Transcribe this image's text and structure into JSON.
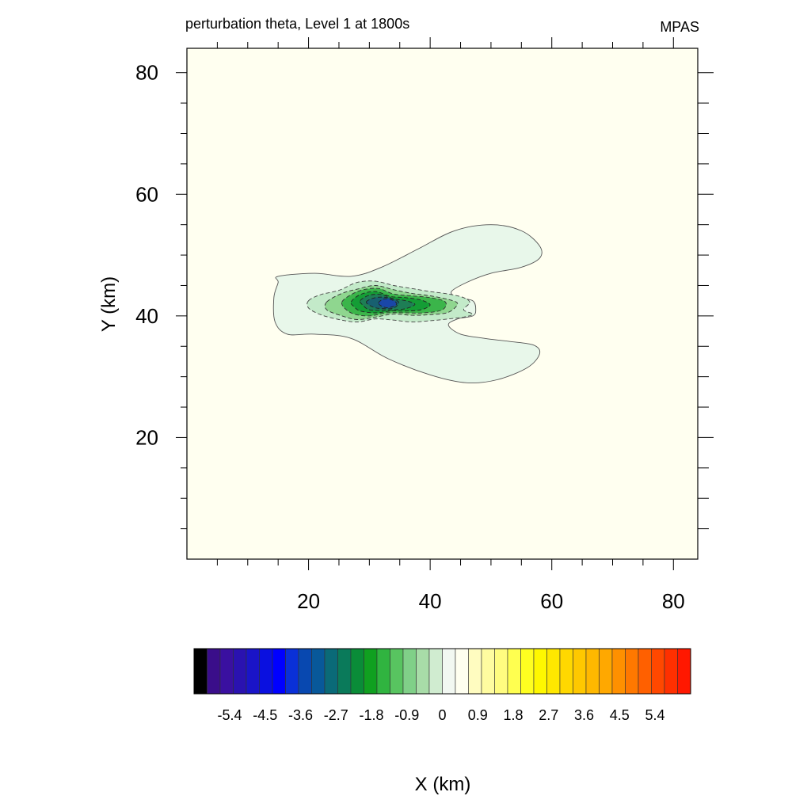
{
  "chart_data": {
    "type": "contour",
    "title": "perturbation theta, Level 1 at 1800s",
    "right_title": "MPAS",
    "xlabel": "X (km)",
    "ylabel": "Y (km)",
    "xlim": [
      0,
      84
    ],
    "ylim": [
      0,
      84
    ],
    "x_ticks": [
      20,
      40,
      60,
      80
    ],
    "y_ticks": [
      20,
      40,
      60,
      80
    ],
    "minor_tick_step": 5,
    "background_color": "#fffff0",
    "contours": [
      {
        "level": -0.3,
        "fill": "#e8f7ea",
        "stroke": "#555555",
        "dashed": false,
        "points": [
          [
            15,
            46.5
          ],
          [
            21,
            47
          ],
          [
            27,
            46.5
          ],
          [
            32,
            48
          ],
          [
            38,
            51
          ],
          [
            44,
            54
          ],
          [
            50,
            55
          ],
          [
            55,
            54
          ],
          [
            58,
            51.5
          ],
          [
            58,
            49.5
          ],
          [
            55,
            48
          ],
          [
            50,
            47
          ],
          [
            46,
            45.5
          ],
          [
            43.5,
            44
          ],
          [
            44.5,
            43
          ],
          [
            47,
            42.5
          ],
          [
            47.5,
            41
          ],
          [
            47,
            40
          ],
          [
            44.5,
            39.5
          ],
          [
            43,
            38.5
          ],
          [
            45,
            37
          ],
          [
            49,
            36.3
          ],
          [
            53,
            35.8
          ],
          [
            57,
            35.2
          ],
          [
            58,
            33.8
          ],
          [
            56,
            31.5
          ],
          [
            51,
            29.5
          ],
          [
            46,
            29
          ],
          [
            40,
            30.3
          ],
          [
            33,
            33
          ],
          [
            27,
            36.3
          ],
          [
            21,
            37
          ],
          [
            16.5,
            37
          ],
          [
            14.5,
            39
          ],
          [
            14.3,
            43
          ],
          [
            15,
            45.5
          ]
        ]
      },
      {
        "level": -0.9,
        "fill": "#c3eac9",
        "stroke": "#444444",
        "dashed": true,
        "points": [
          [
            20,
            42.5
          ],
          [
            22,
            43.5
          ],
          [
            25,
            44.2
          ],
          [
            28,
            45.5
          ],
          [
            31,
            45.7
          ],
          [
            34,
            45
          ],
          [
            37,
            44.5
          ],
          [
            40,
            44
          ],
          [
            43,
            43.6
          ],
          [
            45.5,
            43
          ],
          [
            46.5,
            42.2
          ],
          [
            45.5,
            41
          ],
          [
            47,
            40.3
          ],
          [
            45.5,
            39.8
          ],
          [
            43,
            39.5
          ],
          [
            40,
            39.2
          ],
          [
            37,
            39
          ],
          [
            34,
            39.3
          ],
          [
            31,
            39.5
          ],
          [
            28,
            39
          ],
          [
            25,
            39.4
          ],
          [
            22,
            40.2
          ],
          [
            20,
            41.3
          ]
        ]
      },
      {
        "level": -1.5,
        "fill": "#8fd68f",
        "stroke": "#333333",
        "dashed": true,
        "points": [
          [
            23,
            42.3
          ],
          [
            25.5,
            43.7
          ],
          [
            28,
            44.4
          ],
          [
            31,
            45
          ],
          [
            34,
            44.3
          ],
          [
            37,
            43.7
          ],
          [
            40,
            43.3
          ],
          [
            43,
            42.7
          ],
          [
            44.5,
            42
          ],
          [
            43,
            40.6
          ],
          [
            40,
            40.2
          ],
          [
            37,
            40.1
          ],
          [
            34,
            40.3
          ],
          [
            31,
            39.8
          ],
          [
            28,
            39.4
          ],
          [
            25.5,
            40
          ],
          [
            23,
            41
          ]
        ]
      },
      {
        "level": -2.1,
        "fill": "#3bb54a",
        "stroke": "#333333",
        "dashed": true,
        "points": [
          [
            25.5,
            42.3
          ],
          [
            27,
            43.5
          ],
          [
            29,
            44.3
          ],
          [
            31.5,
            44.5
          ],
          [
            34,
            43.6
          ],
          [
            37,
            43.3
          ],
          [
            40,
            43
          ],
          [
            42.5,
            42.3
          ],
          [
            42,
            41
          ],
          [
            39,
            40.5
          ],
          [
            36,
            40.5
          ],
          [
            33,
            40.5
          ],
          [
            30,
            40
          ],
          [
            27.5,
            40.3
          ],
          [
            26,
            41.2
          ]
        ]
      },
      {
        "level": -2.7,
        "fill": "#149d35",
        "stroke": "#222222",
        "dashed": true,
        "points": [
          [
            27,
            42.3
          ],
          [
            28.5,
            43.5
          ],
          [
            31,
            44
          ],
          [
            33.5,
            43.2
          ],
          [
            36,
            43
          ],
          [
            38.5,
            42.6
          ],
          [
            40,
            41.8
          ],
          [
            38.5,
            41
          ],
          [
            36,
            40.8
          ],
          [
            33.5,
            40.8
          ],
          [
            31,
            40.5
          ],
          [
            28.5,
            40.8
          ],
          [
            27.5,
            41.5
          ]
        ]
      },
      {
        "level": -3.3,
        "fill": "#1e7e55",
        "stroke": "#222222",
        "dashed": true,
        "points": [
          [
            28.5,
            42.5
          ],
          [
            30,
            43.4
          ],
          [
            32,
            43.5
          ],
          [
            34,
            42.8
          ],
          [
            36,
            42.5
          ],
          [
            37.5,
            41.9
          ],
          [
            36,
            41.2
          ],
          [
            34,
            41
          ],
          [
            32,
            40.9
          ],
          [
            30,
            41
          ],
          [
            29,
            41.7
          ]
        ]
      },
      {
        "level": -3.9,
        "fill": "#186070",
        "stroke": "#222222",
        "dashed": true,
        "points": [
          [
            29.5,
            42.3
          ],
          [
            31,
            43
          ],
          [
            33,
            43
          ],
          [
            34.8,
            42.3
          ],
          [
            34,
            41.3
          ],
          [
            32,
            41.2
          ],
          [
            30.5,
            41.5
          ]
        ]
      },
      {
        "level": -4.5,
        "fill": "#1a47a8",
        "stroke": "#222222",
        "dashed": true,
        "points": [
          [
            31.5,
            42.1
          ],
          [
            32.5,
            42.8
          ],
          [
            33.8,
            42.6
          ],
          [
            34.5,
            42
          ],
          [
            33.8,
            41.5
          ],
          [
            32.5,
            41.4
          ]
        ]
      }
    ],
    "colorbar": {
      "labels": [
        "-5.4",
        "-4.5",
        "-3.6",
        "-2.7",
        "-1.8",
        "-0.9",
        "0",
        "0.9",
        "1.8",
        "2.7",
        "3.6",
        "4.5",
        "5.4"
      ],
      "colors": [
        "#000000",
        "#3a0e8a",
        "#3a10a0",
        "#2a12b0",
        "#1a14c8",
        "#0a10e0",
        "#0000ff",
        "#0a30d8",
        "#0848b0",
        "#08589a",
        "#0a6a78",
        "#0a7a5a",
        "#0a8c38",
        "#10a020",
        "#30b440",
        "#58c460",
        "#80d088",
        "#a8dca8",
        "#d0ecd0",
        "#f2f8f2",
        "#fffff0",
        "#fffcc0",
        "#fffca0",
        "#fffc80",
        "#ffff50",
        "#ffff20",
        "#fff800",
        "#ffe800",
        "#ffd800",
        "#ffc800",
        "#ffb800",
        "#ffa800",
        "#ff9000",
        "#ff7800",
        "#ff6000",
        "#ff4800",
        "#ff3000",
        "#ff1800"
      ]
    }
  }
}
